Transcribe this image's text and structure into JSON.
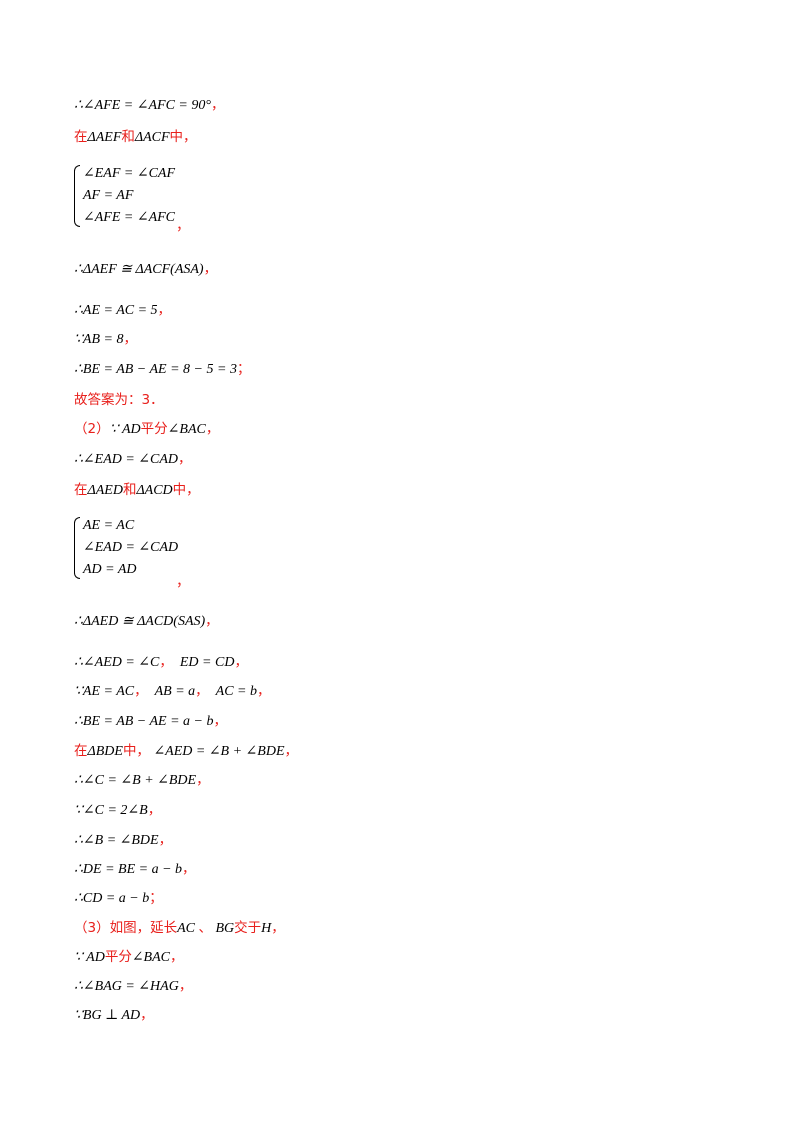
{
  "lines": [
    {
      "math": "∴∠AFE = ∠AFC = 90°",
      "red": "，"
    },
    {
      "red1": "在",
      "math": "ΔAEF",
      "red2": "和",
      "math2": "ΔACF",
      "red3": "中，"
    },
    {
      "sys": [
        "∠EAF = ∠CAF",
        "AF = AF",
        "∠AFE = ∠AFC"
      ],
      "red": "，"
    },
    {
      "math": "∴ΔAEF ≅ ΔACF(ASA)",
      "red": "，"
    },
    {
      "math": "∴AE = AC = 5",
      "red": "，"
    },
    {
      "math": "∵AB = 8",
      "red": "，"
    },
    {
      "math": "∴BE = AB − AE = 8 − 5 = 3",
      "red": "；"
    },
    {
      "red": "故答案为：3．"
    },
    {
      "red1": "（2）",
      "math": "∵ AD",
      "red2": "平分",
      "math2": "∠BAC",
      "red3": "，"
    },
    {
      "math": "∴∠EAD = ∠CAD",
      "red": "，"
    },
    {
      "red1": "在",
      "math": "ΔAED",
      "red2": "和",
      "math2": "ΔACD",
      "red3": "中，"
    },
    {
      "sys": [
        "AE = AC",
        "∠EAD = ∠CAD",
        "AD = AD"
      ],
      "red": "，"
    },
    {
      "math": "∴ΔAED ≅ ΔACD(SAS)",
      "red": "，"
    },
    {
      "math": "∴∠AED = ∠C",
      "red": "，",
      "math2": "ED = CD",
      "red2": "，"
    },
    {
      "math": "∵AE = AC",
      "red": "，",
      "math2": "AB = a",
      "red2": "，",
      "math3": "AC = b",
      "red3": "，"
    },
    {
      "math": "∴BE = AB − AE = a − b",
      "red": "，"
    },
    {
      "red1": "在",
      "math": "ΔBDE",
      "red2": "中，",
      "math2": "∠AED = ∠B + ∠BDE",
      "red3": "，"
    },
    {
      "math": "∴∠C = ∠B + ∠BDE",
      "red": "，"
    },
    {
      "math": "∵∠C = 2∠B",
      "red": "，"
    },
    {
      "math": "∴∠B = ∠BDE",
      "red": "，"
    },
    {
      "math": "∴DE = BE = a − b",
      "red": "，"
    },
    {
      "math": "∴CD = a − b",
      "red": "；"
    },
    {
      "red1": "（3）如图，延长",
      "math": "AC",
      "red2": "、",
      "math2": "BG",
      "red3": "交于",
      "math3": "H",
      "red4": "，"
    },
    {
      "math": "∵ AD",
      "red": "平分",
      "math2": "∠BAC",
      "red2": "，"
    },
    {
      "math": "∴∠BAG = ∠HAG",
      "red": "，"
    },
    {
      "math": "∵BG ⊥ AD",
      "red": "，"
    }
  ]
}
